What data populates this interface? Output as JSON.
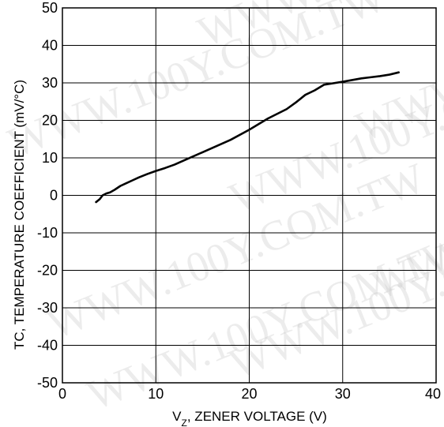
{
  "chart_data": {
    "type": "line",
    "xlabel": "V_Z, ZENER VOLTAGE (V)",
    "xlabel_main": "V",
    "xlabel_sub": "Z",
    "xlabel_rest": ", ZENER VOLTAGE (V)",
    "ylabel": "TC,  TEMPERATURE COEFFICIENT (mV/°C)",
    "xlim": [
      0,
      40
    ],
    "ylim": [
      -50,
      50
    ],
    "x_ticks": [
      "0",
      "10",
      "20",
      "30",
      "40"
    ],
    "y_ticks": [
      "50",
      "40",
      "30",
      "20",
      "10",
      "0",
      "-10",
      "-20",
      "-30",
      "-40",
      "-50"
    ],
    "grid": true,
    "series": [
      {
        "x": [
          3.6,
          4.0,
          4.3,
          4.7,
          5.1,
          5.6,
          6.2,
          6.8,
          7.5,
          8.2,
          9.1,
          10,
          11,
          12,
          13,
          15,
          16,
          18,
          20,
          22,
          24,
          25,
          26,
          27,
          28,
          30,
          32,
          33,
          34,
          35,
          36
        ],
        "y": [
          -1.8,
          -1.0,
          0.0,
          0.5,
          0.8,
          1.5,
          2.5,
          3.2,
          4.0,
          4.8,
          5.7,
          6.5,
          7.3,
          8.2,
          9.3,
          11.5,
          12.6,
          14.8,
          17.5,
          20.5,
          23.0,
          24.8,
          26.8,
          28.0,
          29.5,
          30.3,
          31.2,
          31.5,
          31.8,
          32.2,
          32.8
        ]
      }
    ],
    "watermark": "WWW.100Y.COM.TW"
  }
}
